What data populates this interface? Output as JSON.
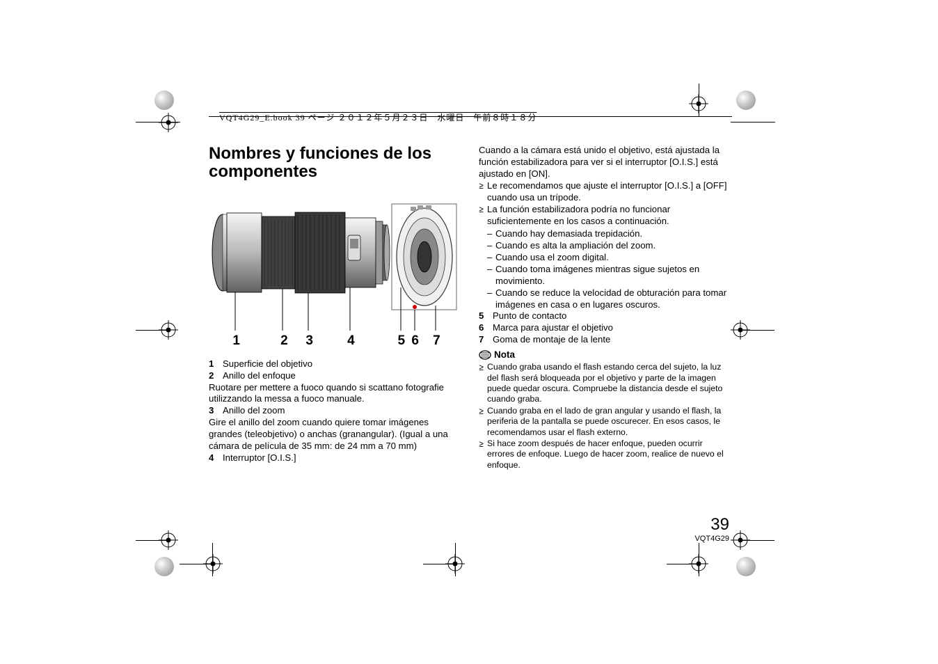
{
  "header_text": "VQT4G29_E.book  39 ページ  ２０１２年５月２３日　水曜日　午前８時１８分",
  "title": "Nombres y funciones de los componentes",
  "fig_numbers": [
    "1",
    "2",
    "3",
    "4",
    "5",
    "6",
    "7"
  ],
  "fig_positions_pct": [
    9.5,
    28.5,
    38.5,
    55,
    75,
    80.5,
    89
  ],
  "left_items": [
    {
      "n": "1",
      "label": "Superficie del objetivo",
      "desc": ""
    },
    {
      "n": "2",
      "label": "Anillo del enfoque",
      "desc": "Ruotare per mettere a fuoco quando si scattano fotografie utilizzando la messa a fuoco manuale."
    },
    {
      "n": "3",
      "label": "Anillo del zoom",
      "desc": "Gire el anillo del zoom cuando quiere tomar imágenes grandes (teleobjetivo) o anchas (granangular). (Igual a una cámara de película de 35 mm: de 24 mm a 70 mm)"
    },
    {
      "n": "4",
      "label": "Interruptor [O.I.S.]",
      "desc": ""
    }
  ],
  "right_intro": "Cuando a la cámara está unido el objetivo, está ajustada la función estabilizadora para ver si el interruptor [O.I.S.] está ajustado en [ON].",
  "right_bullets": [
    "Le recomendamos que ajuste el interruptor [O.I.S.] a [OFF] cuando usa un trípode.",
    "La función estabilizadora podría no funcionar suficientemente en los casos a continuación."
  ],
  "right_dashes": [
    "Cuando hay demasiada trepidación.",
    "Cuando es alta la ampliación del zoom.",
    "Cuando usa el zoom digital.",
    "Cuando toma imágenes mientras sigue sujetos en movimiento.",
    "Cuando se reduce la velocidad de obturación para tomar imágenes en casa o en lugares oscuros."
  ],
  "right_items": [
    {
      "n": "5",
      "label": "Punto de contacto"
    },
    {
      "n": "6",
      "label": "Marca para ajustar el objetivo"
    },
    {
      "n": "7",
      "label": "Goma de montaje de la lente"
    }
  ],
  "nota_label": "Nota",
  "nota_bullets": [
    "Cuando graba usando el flash estando cerca del sujeto, la luz del flash será bloqueada por el objetivo y parte de la imagen puede quedar oscura. Compruebe la distancia desde el sujeto cuando graba.",
    "Cuando graba en el lado de gran angular y usando el flash, la periferia de la pantalla se puede oscurecer. En esos casos, le recomendamos usar el flash externo.",
    "Si hace zoom después de hacer enfoque, pueden ocurrir errores de enfoque. Luego de hacer zoom, realice de nuevo el enfoque."
  ],
  "page_number": "39",
  "doc_id": "VQT4G29",
  "colors": {
    "text": "#000000",
    "bg": "#ffffff",
    "lens_light": "#dcdcdc",
    "lens_dark": "#6e6e6e"
  }
}
